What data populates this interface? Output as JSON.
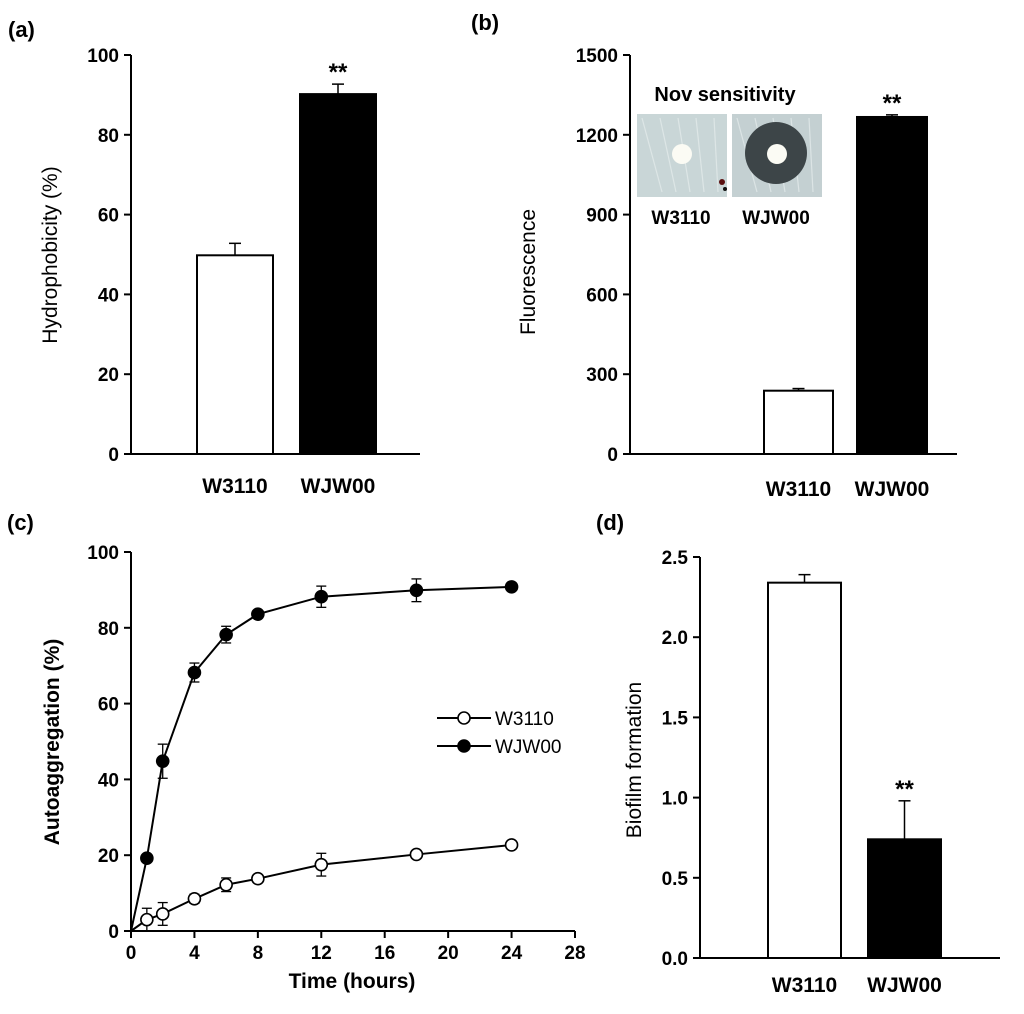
{
  "chart_data": [
    {
      "panel": "(a)",
      "type": "bar",
      "categories": [
        "W3110",
        "WJW00"
      ],
      "values": [
        49.8,
        90.2
      ],
      "errors": [
        3.0,
        2.5
      ],
      "fills": [
        "#ffffff",
        "#000000"
      ],
      "annotations": [
        "",
        "**"
      ],
      "ylabel": "Hydrophobicity (%)",
      "xlabel": "",
      "ylim": [
        0,
        100
      ],
      "yticks": [
        0,
        20,
        40,
        60,
        80,
        100
      ]
    },
    {
      "panel": "(b)",
      "type": "bar",
      "categories": [
        "W3110",
        "WJW00"
      ],
      "values": [
        238,
        1267
      ],
      "errors": [
        8,
        8
      ],
      "fills": [
        "#ffffff",
        "#000000"
      ],
      "annotations": [
        "",
        "**"
      ],
      "ylabel": "Fluorescence",
      "xlabel": "",
      "ylim": [
        0,
        1500
      ],
      "yticks": [
        0,
        300,
        600,
        900,
        1200,
        1500
      ],
      "inset": {
        "title": "Nov sensitivity",
        "labels": [
          "W3110",
          "WJW00"
        ]
      }
    },
    {
      "panel": "(c)",
      "type": "line",
      "xlabel": "Time (hours)",
      "ylabel": "Autoaggregation (%)",
      "xlim": [
        0,
        28
      ],
      "ylim": [
        0,
        100
      ],
      "xticks": [
        0,
        4,
        8,
        12,
        16,
        20,
        24,
        28
      ],
      "yticks": [
        0,
        20,
        40,
        60,
        80,
        100
      ],
      "legend_position": "center-right",
      "x": [
        0,
        1,
        2,
        4,
        6,
        8,
        12,
        18,
        24
      ],
      "series": [
        {
          "name": "W3110",
          "marker": "open-circle",
          "values": [
            0,
            3,
            4.5,
            8.5,
            12.2,
            13.8,
            17.5,
            20.2,
            22.7
          ],
          "errors": [
            0,
            3,
            3,
            1.2,
            1.8,
            1,
            3,
            1,
            1
          ]
        },
        {
          "name": "WJW00",
          "marker": "filled-circle",
          "values": [
            0,
            19.2,
            44.8,
            68.2,
            78.2,
            83.6,
            88.2,
            89.9,
            90.8
          ],
          "errors": [
            0,
            0.5,
            4.5,
            2.5,
            2.2,
            0.5,
            2.8,
            3,
            0.5
          ]
        }
      ]
    },
    {
      "panel": "(d)",
      "type": "bar",
      "categories": [
        "W3110",
        "WJW00"
      ],
      "values": [
        2.34,
        0.74
      ],
      "errors": [
        0.05,
        0.24
      ],
      "fills": [
        "#ffffff",
        "#000000"
      ],
      "annotations": [
        "",
        "**"
      ],
      "ylabel": "Biofilm formation",
      "xlabel": "",
      "ylim": [
        0,
        2.5
      ],
      "yticks": [
        "0.0",
        "0.5",
        "1.0",
        "1.5",
        "2.0",
        "2.5"
      ]
    }
  ]
}
